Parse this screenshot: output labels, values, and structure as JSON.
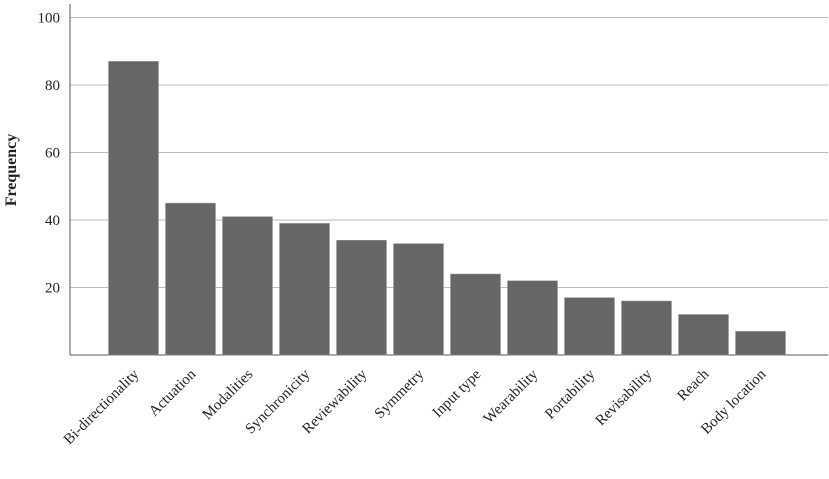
{
  "chart_data": {
    "type": "bar",
    "y_label": "Frequency",
    "categories": [
      "Bi-directionality",
      "Actuation",
      "Modalities",
      "Synchronicity",
      "Reviewability",
      "Symmetry",
      "Input type",
      "Wearability",
      "Portability",
      "Revisability",
      "Reach",
      "Body location"
    ],
    "values": [
      87,
      45,
      41,
      39,
      34,
      33,
      24,
      22,
      17,
      16,
      12,
      7
    ],
    "color": "#666666",
    "ylim": [
      0,
      104
    ],
    "yticks": [
      20,
      40,
      60,
      80,
      100
    ],
    "grid": true
  }
}
